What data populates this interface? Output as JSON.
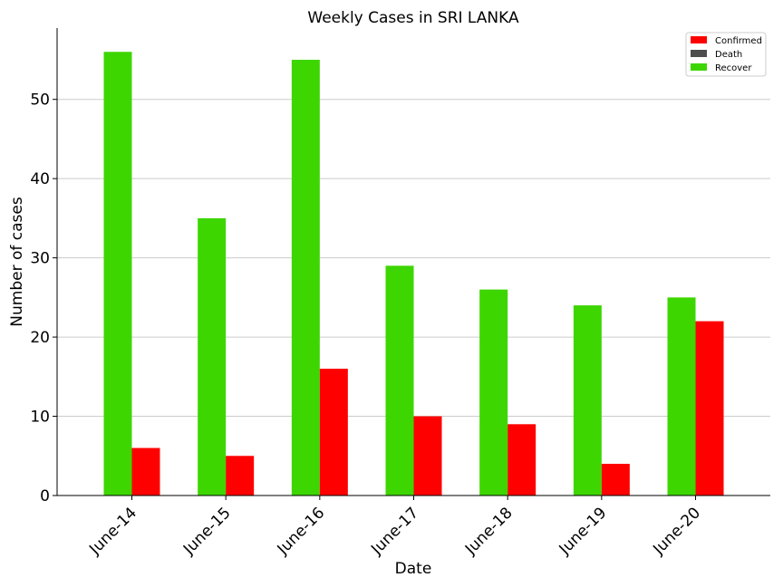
{
  "chart_data": {
    "type": "bar",
    "title": "Weekly Cases in SRI LANKA",
    "xlabel": "Date",
    "ylabel": "Number of cases",
    "categories": [
      "June-14",
      "June-15",
      "June-16",
      "June-17",
      "June-18",
      "June-19",
      "June-20"
    ],
    "series": [
      {
        "name": "Recover",
        "color": "#3dd600",
        "values": [
          56,
          35,
          55,
          29,
          26,
          24,
          25
        ]
      },
      {
        "name": "Confirmed",
        "color": "#ff0000",
        "values": [
          6,
          5,
          16,
          10,
          9,
          4,
          22
        ]
      },
      {
        "name": "Death",
        "color": "#4d4d4d",
        "values": [
          0,
          0,
          0,
          0,
          0,
          0,
          0
        ]
      }
    ],
    "legend": {
      "position": "top-right",
      "entries": [
        {
          "label": "Confirmed",
          "color": "#ff0000"
        },
        {
          "label": "Death",
          "color": "#4d4d4d"
        },
        {
          "label": "Recover",
          "color": "#3dd600"
        }
      ]
    },
    "ylim": [
      0,
      59
    ],
    "yticks": [
      0,
      10,
      20,
      30,
      40,
      50
    ],
    "grid": "horizontal",
    "xtick_rotation": "45 degrees"
  }
}
